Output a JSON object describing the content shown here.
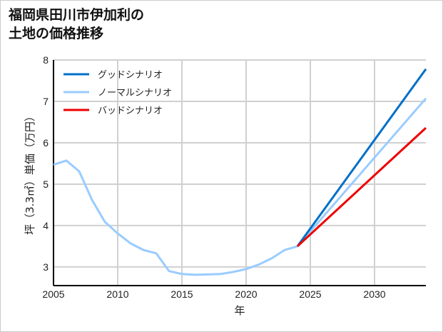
{
  "chart_data": {
    "type": "line",
    "title": [
      "福岡県田川市伊加利の",
      "土地の価格推移"
    ],
    "xlabel": "年",
    "ylabel": "坪（3.3㎡）単価（万円）",
    "xlim": [
      2005,
      2034
    ],
    "ylim": [
      2.55,
      8
    ],
    "xticks": [
      2005,
      2010,
      2015,
      2020,
      2025,
      2030
    ],
    "yticks": [
      3,
      4,
      5,
      6,
      7,
      8
    ],
    "grid": true,
    "legend_position": "top-left",
    "series": [
      {
        "name": "グッドシナリオ",
        "color": "#0070c8",
        "x": [
          2024,
          2034
        ],
        "y": [
          3.5,
          7.78
        ]
      },
      {
        "name": "ノーマルシナリオ",
        "color": "#99ccff",
        "x": [
          2005,
          2006,
          2007,
          2008,
          2009,
          2010,
          2011,
          2012,
          2013,
          2014,
          2015,
          2016,
          2017,
          2018,
          2019,
          2020,
          2021,
          2022,
          2023,
          2024,
          2034
        ],
        "y": [
          5.47,
          5.57,
          5.31,
          4.62,
          4.09,
          3.81,
          3.57,
          3.41,
          3.33,
          2.9,
          2.83,
          2.81,
          2.82,
          2.83,
          2.88,
          2.95,
          3.06,
          3.21,
          3.41,
          3.5,
          7.07
        ]
      },
      {
        "name": "バッドシナリオ",
        "color": "#ee0000",
        "x": [
          2024,
          2034
        ],
        "y": [
          3.5,
          6.36
        ]
      }
    ]
  }
}
